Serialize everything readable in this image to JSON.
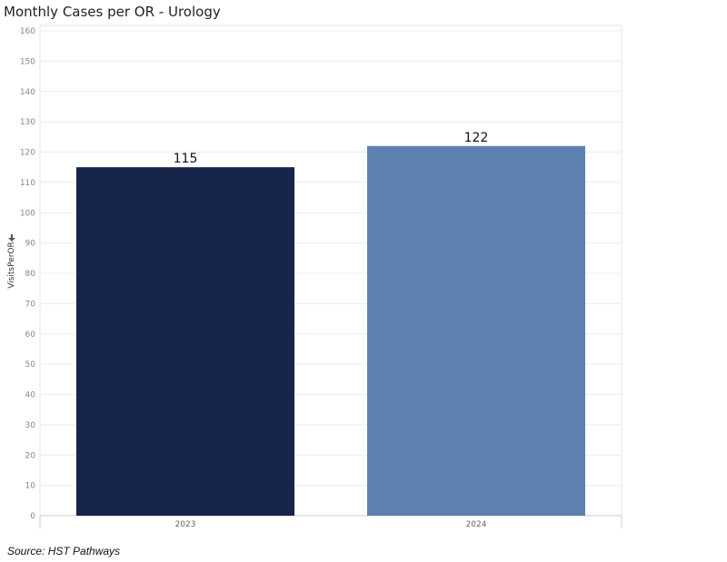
{
  "title": "Monthly Cases per OR - Urology",
  "source": "Source: HST Pathways",
  "colors": {
    "bar_2023": "#17244b",
    "bar_2024": "#5f81af",
    "grid": "#ececec",
    "axis": "#cccccc"
  },
  "chart_data": {
    "type": "bar",
    "title": "Monthly Cases per OR - Urology",
    "xlabel": "",
    "ylabel": "VisitsPerOR",
    "ylim": [
      0,
      160
    ],
    "yticks": [
      0,
      10,
      20,
      30,
      40,
      50,
      60,
      70,
      80,
      90,
      100,
      110,
      120,
      130,
      140,
      150,
      160
    ],
    "categories": [
      "2023",
      "2024"
    ],
    "values": [
      115,
      122
    ],
    "data_labels": [
      "115",
      "122"
    ],
    "grid": true,
    "legend": "none"
  }
}
